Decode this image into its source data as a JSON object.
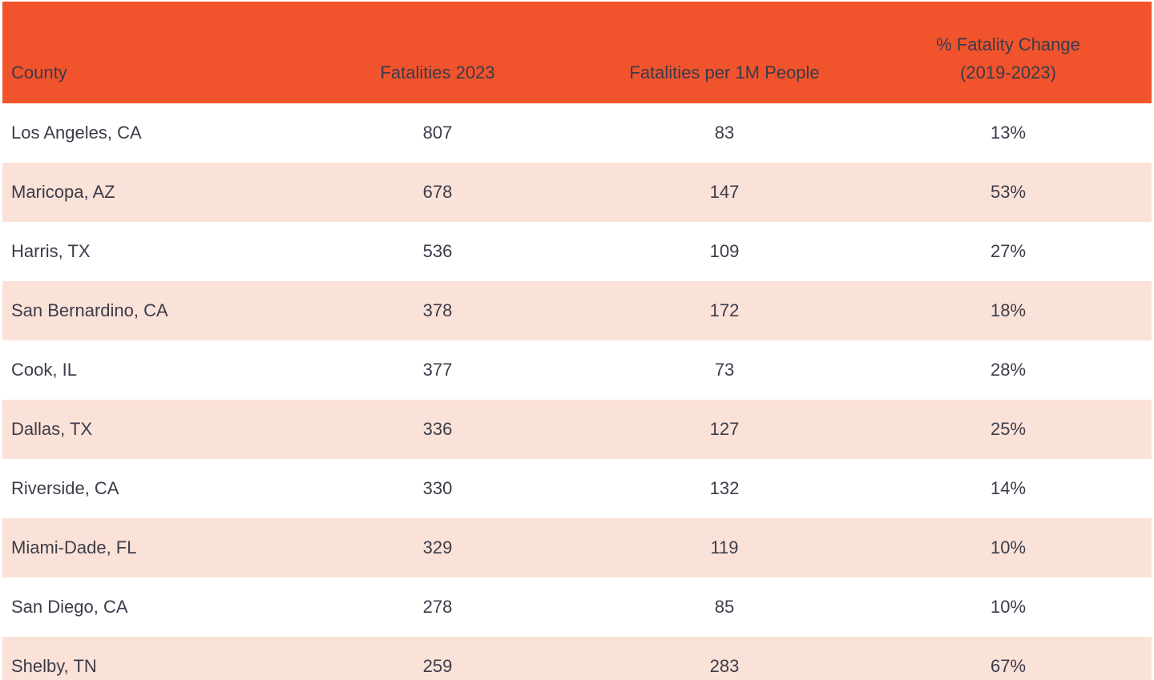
{
  "colors": {
    "header_bg": "#F1542C",
    "row_stripe_bg": "#FBE2D8",
    "row_bg": "#FFFFFF",
    "text": "#3C3C4A"
  },
  "table": {
    "header": {
      "county": "County",
      "fatalities_2023": "Fatalities 2023",
      "per_1m": "Fatalities per 1M People",
      "pct_change_line1": "% Fatality Change",
      "pct_change_line2": "(2019-2023)"
    },
    "rows": [
      [
        "Los Angeles, CA",
        "807",
        "83",
        "13%"
      ],
      [
        "Maricopa, AZ",
        "678",
        "147",
        "53%"
      ],
      [
        "Harris, TX",
        "536",
        "109",
        "27%"
      ],
      [
        "San Bernardino, CA",
        "378",
        "172",
        "18%"
      ],
      [
        "Cook, IL",
        "377",
        "73",
        "28%"
      ],
      [
        "Dallas, TX",
        "336",
        "127",
        "25%"
      ],
      [
        "Riverside, CA",
        "330",
        "132",
        "14%"
      ],
      [
        "Miami-Dade, FL",
        "329",
        "119",
        "10%"
      ],
      [
        "San Diego, CA",
        "278",
        "85",
        "10%"
      ],
      [
        "Shelby, TN",
        "259",
        "283",
        "67%"
      ]
    ]
  },
  "chart_data": {
    "type": "table",
    "columns": [
      "County",
      "Fatalities 2023",
      "Fatalities per 1M People",
      "% Fatality Change (2019-2023)"
    ],
    "rows": [
      [
        "Los Angeles, CA",
        807,
        83,
        "13%"
      ],
      [
        "Maricopa, AZ",
        678,
        147,
        "53%"
      ],
      [
        "Harris, TX",
        536,
        109,
        "27%"
      ],
      [
        "San Bernardino, CA",
        378,
        172,
        "18%"
      ],
      [
        "Cook, IL",
        377,
        73,
        "28%"
      ],
      [
        "Dallas, TX",
        336,
        127,
        "25%"
      ],
      [
        "Riverside, CA",
        330,
        132,
        "14%"
      ],
      [
        "Miami-Dade, FL",
        329,
        119,
        "10%"
      ],
      [
        "San Diego, CA",
        278,
        85,
        "10%"
      ],
      [
        "Shelby, TN",
        259,
        283,
        "67%"
      ]
    ],
    "layout": {
      "header_row_style": "solid orange background",
      "row_striping": "alternating white / light peach starting with white",
      "column_alignment": [
        "left",
        "center",
        "center",
        "center"
      ]
    }
  }
}
